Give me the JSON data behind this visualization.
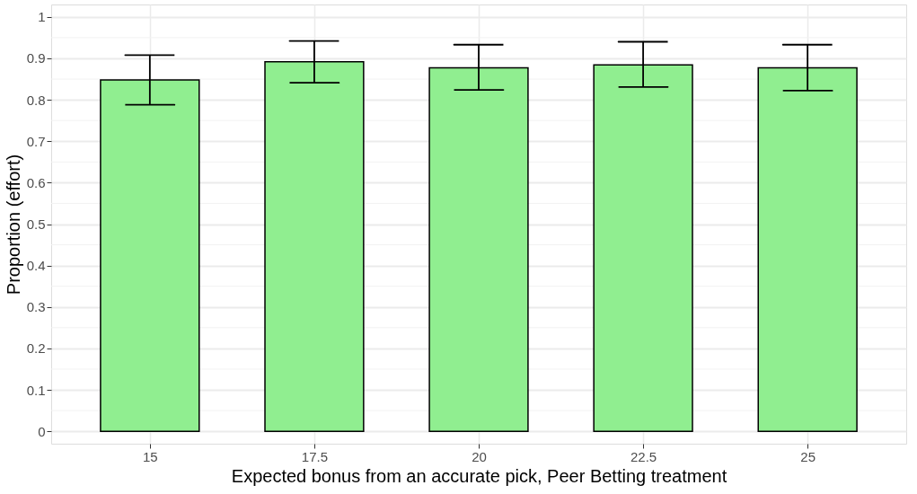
{
  "chart_data": {
    "type": "bar",
    "xlabel": "Expected bonus from an accurate pick, Peer Betting treatment",
    "ylabel": "Proportion (effort)",
    "categories": [
      "15",
      "17.5",
      "20",
      "22.5",
      "25"
    ],
    "values": [
      0.848,
      0.892,
      0.877,
      0.884,
      0.877
    ],
    "errors": [
      [
        0.788,
        0.908
      ],
      [
        0.841,
        0.942
      ],
      [
        0.824,
        0.933
      ],
      [
        0.831,
        0.94
      ],
      [
        0.822,
        0.933
      ]
    ],
    "color": "#90ee90",
    "ylim": [
      -0.03,
      1.03
    ],
    "yticks": [
      0,
      {
        "value": 0.05,
        "label": null
      },
      0.1,
      {
        "value": 0.15,
        "label": null
      },
      0.2,
      {
        "value": 0.25,
        "label": null
      },
      0.3,
      {
        "value": 0.35,
        "label": null
      },
      0.4,
      {
        "value": 0.45,
        "label": null
      },
      0.5,
      {
        "value": 0.55,
        "label": null
      },
      0.6,
      {
        "value": 0.65,
        "label": null
      },
      0.7,
      {
        "value": 0.75,
        "label": null
      },
      0.8,
      {
        "value": 0.85,
        "label": null
      },
      0.9,
      {
        "value": 0.95,
        "label": null
      },
      1
    ],
    "grid": true
  }
}
